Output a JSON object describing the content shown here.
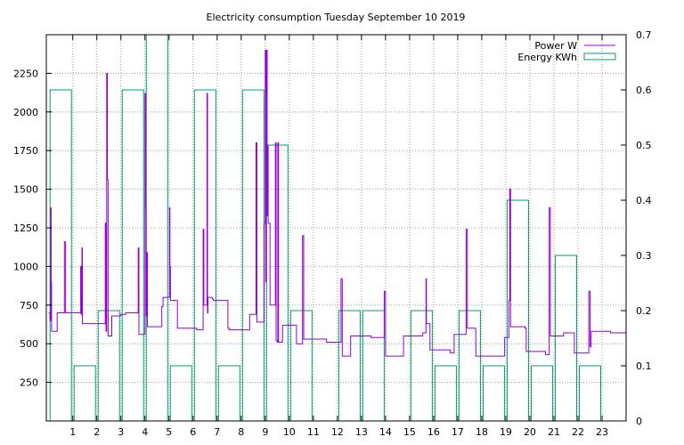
{
  "chart_data": {
    "type": "line",
    "title": "Electricity consumption Tuesday September 10 2019",
    "xlabel": "",
    "ylabel": "",
    "y2label": "",
    "xlim": [
      -0.1,
      24
    ],
    "ylim": [
      0,
      2500
    ],
    "y2lim": [
      0,
      0.7
    ],
    "x_ticks": [
      1,
      2,
      3,
      4,
      5,
      6,
      7,
      8,
      9,
      10,
      11,
      12,
      13,
      14,
      15,
      16,
      17,
      18,
      19,
      20,
      21,
      22,
      23
    ],
    "y_ticks": [
      250,
      500,
      750,
      1000,
      1250,
      1500,
      1750,
      2000,
      2250
    ],
    "y2_ticks": [
      "0",
      "0.1",
      "0.2",
      "0.3",
      "0.4",
      "0.5",
      "0.6",
      "0.7"
    ],
    "grid": true,
    "legend_position": "top-right",
    "colors": {
      "power": "#9400d3",
      "energy": "#009e73"
    },
    "series": [
      {
        "name": "Power W",
        "axis": "left",
        "style": "step",
        "points": [
          [
            0.0,
            700
          ],
          [
            0.05,
            650
          ],
          [
            0.08,
            1380
          ],
          [
            0.1,
            900
          ],
          [
            0.12,
            580
          ],
          [
            0.3,
            580
          ],
          [
            0.35,
            700
          ],
          [
            0.6,
            700
          ],
          [
            0.65,
            1160
          ],
          [
            0.7,
            700
          ],
          [
            1.3,
            700
          ],
          [
            1.33,
            1000
          ],
          [
            1.35,
            690
          ],
          [
            1.38,
            1120
          ],
          [
            1.4,
            630
          ],
          [
            2.3,
            630
          ],
          [
            2.35,
            1280
          ],
          [
            2.38,
            580
          ],
          [
            2.41,
            2250
          ],
          [
            2.44,
            1560
          ],
          [
            2.47,
            550
          ],
          [
            2.6,
            550
          ],
          [
            2.62,
            680
          ],
          [
            2.9,
            680
          ],
          [
            3.0,
            690
          ],
          [
            3.2,
            700
          ],
          [
            3.7,
            700
          ],
          [
            3.72,
            1120
          ],
          [
            3.75,
            560
          ],
          [
            3.8,
            560
          ],
          [
            3.95,
            560
          ],
          [
            4.0,
            2120
          ],
          [
            4.03,
            1380
          ],
          [
            4.05,
            680
          ],
          [
            4.08,
            1090
          ],
          [
            4.1,
            610
          ],
          [
            4.6,
            610
          ],
          [
            4.7,
            740
          ],
          [
            4.75,
            800
          ],
          [
            5.0,
            800
          ],
          [
            5.02,
            1380
          ],
          [
            5.04,
            1000
          ],
          [
            5.06,
            780
          ],
          [
            5.3,
            780
          ],
          [
            5.35,
            600
          ],
          [
            6.1,
            600
          ],
          [
            6.15,
            590
          ],
          [
            6.4,
            590
          ],
          [
            6.42,
            1240
          ],
          [
            6.45,
            750
          ],
          [
            6.55,
            750
          ],
          [
            6.58,
            2120
          ],
          [
            6.6,
            700
          ],
          [
            6.62,
            800
          ],
          [
            6.8,
            790
          ],
          [
            6.85,
            780
          ],
          [
            7.4,
            780
          ],
          [
            7.45,
            600
          ],
          [
            7.5,
            590
          ],
          [
            8.3,
            590
          ],
          [
            8.35,
            690
          ],
          [
            8.6,
            690
          ],
          [
            8.62,
            1800
          ],
          [
            8.65,
            640
          ],
          [
            8.9,
            640
          ],
          [
            8.95,
            1280
          ],
          [
            9.0,
            2400
          ],
          [
            9.02,
            900
          ],
          [
            9.04,
            2120
          ],
          [
            9.06,
            2400
          ],
          [
            9.08,
            1330
          ],
          [
            9.1,
            1780
          ],
          [
            9.12,
            1280
          ],
          [
            9.2,
            750
          ],
          [
            9.4,
            750
          ],
          [
            9.42,
            1800
          ],
          [
            9.45,
            520
          ],
          [
            9.5,
            510
          ],
          [
            9.52,
            1800
          ],
          [
            9.55,
            510
          ],
          [
            9.7,
            510
          ],
          [
            9.72,
            620
          ],
          [
            10.2,
            620
          ],
          [
            10.3,
            500
          ],
          [
            10.5,
            500
          ],
          [
            10.55,
            1200
          ],
          [
            10.6,
            530
          ],
          [
            11.5,
            530
          ],
          [
            11.55,
            510
          ],
          [
            12.1,
            510
          ],
          [
            12.15,
            920
          ],
          [
            12.2,
            420
          ],
          [
            12.5,
            420
          ],
          [
            12.55,
            550
          ],
          [
            13.3,
            550
          ],
          [
            13.4,
            540
          ],
          [
            13.9,
            540
          ],
          [
            13.95,
            840
          ],
          [
            14.0,
            420
          ],
          [
            14.7,
            420
          ],
          [
            14.75,
            550
          ],
          [
            15.5,
            550
          ],
          [
            15.55,
            570
          ],
          [
            15.65,
            570
          ],
          [
            15.68,
            920
          ],
          [
            15.7,
            630
          ],
          [
            15.8,
            630
          ],
          [
            15.85,
            460
          ],
          [
            16.6,
            460
          ],
          [
            16.7,
            440
          ],
          [
            16.8,
            440
          ],
          [
            16.85,
            560
          ],
          [
            17.3,
            560
          ],
          [
            17.35,
            1240
          ],
          [
            17.4,
            600
          ],
          [
            17.7,
            600
          ],
          [
            17.75,
            420
          ],
          [
            18.9,
            420
          ],
          [
            18.95,
            540
          ],
          [
            19.1,
            540
          ],
          [
            19.13,
            780
          ],
          [
            19.16,
            1500
          ],
          [
            19.2,
            610
          ],
          [
            19.8,
            600
          ],
          [
            19.85,
            450
          ],
          [
            20.6,
            450
          ],
          [
            20.65,
            430
          ],
          [
            20.75,
            430
          ],
          [
            20.8,
            1380
          ],
          [
            20.85,
            550
          ],
          [
            21.3,
            550
          ],
          [
            21.4,
            570
          ],
          [
            21.8,
            570
          ],
          [
            21.85,
            440
          ],
          [
            22.4,
            440
          ],
          [
            22.45,
            840
          ],
          [
            22.5,
            480
          ],
          [
            22.55,
            580
          ],
          [
            23.3,
            580
          ],
          [
            23.35,
            570
          ],
          [
            24.0,
            570
          ]
        ]
      },
      {
        "name": "Energy KWh",
        "axis": "right",
        "style": "boxes",
        "points": [
          [
            0,
            0.6
          ],
          [
            1,
            0.1
          ],
          [
            2,
            0.2
          ],
          [
            3,
            0.6
          ],
          [
            4,
            0.7
          ],
          [
            5,
            0.1
          ],
          [
            6,
            0.6
          ],
          [
            7,
            0.1
          ],
          [
            8,
            0.6
          ],
          [
            9,
            0.5
          ],
          [
            10,
            0.2
          ],
          [
            11,
            0
          ],
          [
            12,
            0.2
          ],
          [
            13,
            0.2
          ],
          [
            14,
            0
          ],
          [
            15,
            0.2
          ],
          [
            16,
            0.1
          ],
          [
            17,
            0.2
          ],
          [
            18,
            0.1
          ],
          [
            19,
            0.4
          ],
          [
            20,
            0.1
          ],
          [
            21,
            0.3
          ],
          [
            22,
            0.1
          ],
          [
            23,
            0
          ]
        ]
      }
    ]
  }
}
